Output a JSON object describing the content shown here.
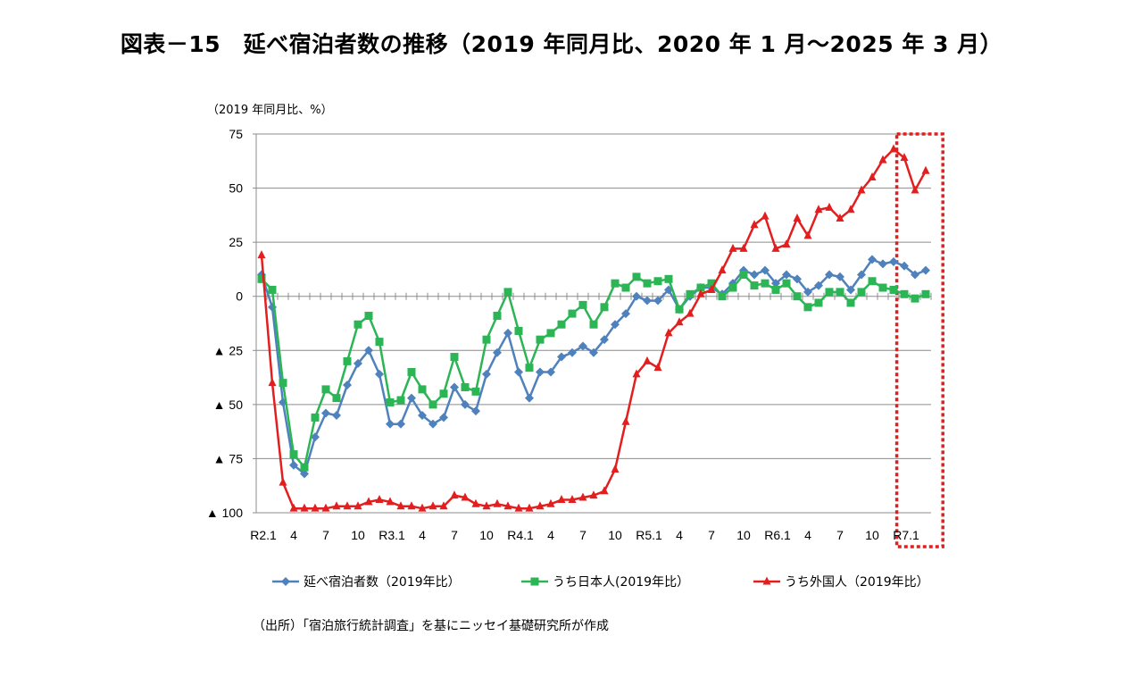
{
  "title": "図表－15　延べ宿泊者数の推移（2019 年同月比、2020 年 1 月～2025 年 3 月）",
  "source": "（出所）「宿泊旅行統計調査」を基にニッセイ基礎研究所が作成",
  "chart_data": {
    "type": "line",
    "unit_label": "（2019 年同月比、%）",
    "ylim": [
      -100,
      75
    ],
    "yticks": [
      {
        "value": 75,
        "label": "75"
      },
      {
        "value": 50,
        "label": "50"
      },
      {
        "value": 25,
        "label": "25"
      },
      {
        "value": 0,
        "label": "0"
      },
      {
        "value": -25,
        "label": "▲ 25"
      },
      {
        "value": -50,
        "label": "▲ 50"
      },
      {
        "value": -75,
        "label": "▲ 75"
      },
      {
        "value": -100,
        "label": "▲ 100"
      }
    ],
    "xticks": [
      {
        "index": 0,
        "label": "R2.1"
      },
      {
        "index": 3,
        "label": "4"
      },
      {
        "index": 6,
        "label": "7"
      },
      {
        "index": 9,
        "label": "10"
      },
      {
        "index": 12,
        "label": "R3.1"
      },
      {
        "index": 15,
        "label": "4"
      },
      {
        "index": 18,
        "label": "7"
      },
      {
        "index": 21,
        "label": "10"
      },
      {
        "index": 24,
        "label": "R4.1"
      },
      {
        "index": 27,
        "label": "4"
      },
      {
        "index": 30,
        "label": "7"
      },
      {
        "index": 33,
        "label": "10"
      },
      {
        "index": 36,
        "label": "R5.1"
      },
      {
        "index": 39,
        "label": "4"
      },
      {
        "index": 42,
        "label": "7"
      },
      {
        "index": 45,
        "label": "10"
      },
      {
        "index": 48,
        "label": "R6.1"
      },
      {
        "index": 51,
        "label": "4"
      },
      {
        "index": 54,
        "label": "7"
      },
      {
        "index": 57,
        "label": "10"
      },
      {
        "index": 60,
        "label": "R7.1"
      }
    ],
    "highlight_range": [
      60,
      62
    ],
    "series": [
      {
        "name": "延べ宿泊者数（2019年比）",
        "color": "#4f81bd",
        "marker": "diamond",
        "values": [
          10,
          -5,
          -49,
          -78,
          -82,
          -65,
          -54,
          -55,
          -41,
          -31,
          -25,
          -36,
          -59,
          -59,
          -47,
          -55,
          -59,
          -56,
          -42,
          -50,
          -53,
          -36,
          -26,
          -17,
          -35,
          -47,
          -35,
          -35,
          -28,
          -26,
          -23,
          -26,
          -20,
          -13,
          -8,
          0,
          -2,
          -2,
          3,
          -6,
          0,
          4,
          4,
          1,
          6,
          12,
          10,
          12,
          6,
          10,
          8,
          2,
          5,
          10,
          9,
          3,
          10,
          17,
          15,
          16,
          14,
          10,
          12
        ]
      },
      {
        "name": "うち日本人(2019年比）",
        "color": "#2bb555",
        "marker": "square",
        "values": [
          8,
          3,
          -40,
          -73,
          -79,
          -56,
          -43,
          -47,
          -30,
          -13,
          -9,
          -21,
          -49,
          -48,
          -35,
          -43,
          -50,
          -45,
          -28,
          -42,
          -44,
          -20,
          -9,
          2,
          -16,
          -33,
          -20,
          -17,
          -13,
          -8,
          -4,
          -13,
          -5,
          6,
          4,
          9,
          6,
          7,
          8,
          -6,
          1,
          4,
          6,
          0,
          4,
          10,
          5,
          6,
          3,
          6,
          0,
          -5,
          -3,
          2,
          2,
          -3,
          2,
          7,
          4,
          3,
          1,
          -1,
          1
        ]
      },
      {
        "name": "うち外国人（2019年比）",
        "color": "#e31e1e",
        "marker": "triangle",
        "values": [
          19,
          -40,
          -86,
          -98,
          -98,
          -98,
          -98,
          -97,
          -97,
          -97,
          -95,
          -94,
          -95,
          -97,
          -97,
          -98,
          -97,
          -97,
          -92,
          -93,
          -96,
          -97,
          -96,
          -97,
          -98,
          -98,
          -97,
          -96,
          -94,
          -94,
          -93,
          -92,
          -90,
          -80,
          -58,
          -36,
          -30,
          -33,
          -17,
          -12,
          -8,
          1,
          3,
          12,
          22,
          22,
          33,
          37,
          22,
          24,
          36,
          28,
          40,
          41,
          36,
          40,
          49,
          55,
          63,
          68,
          64,
          49,
          58
        ]
      }
    ]
  }
}
